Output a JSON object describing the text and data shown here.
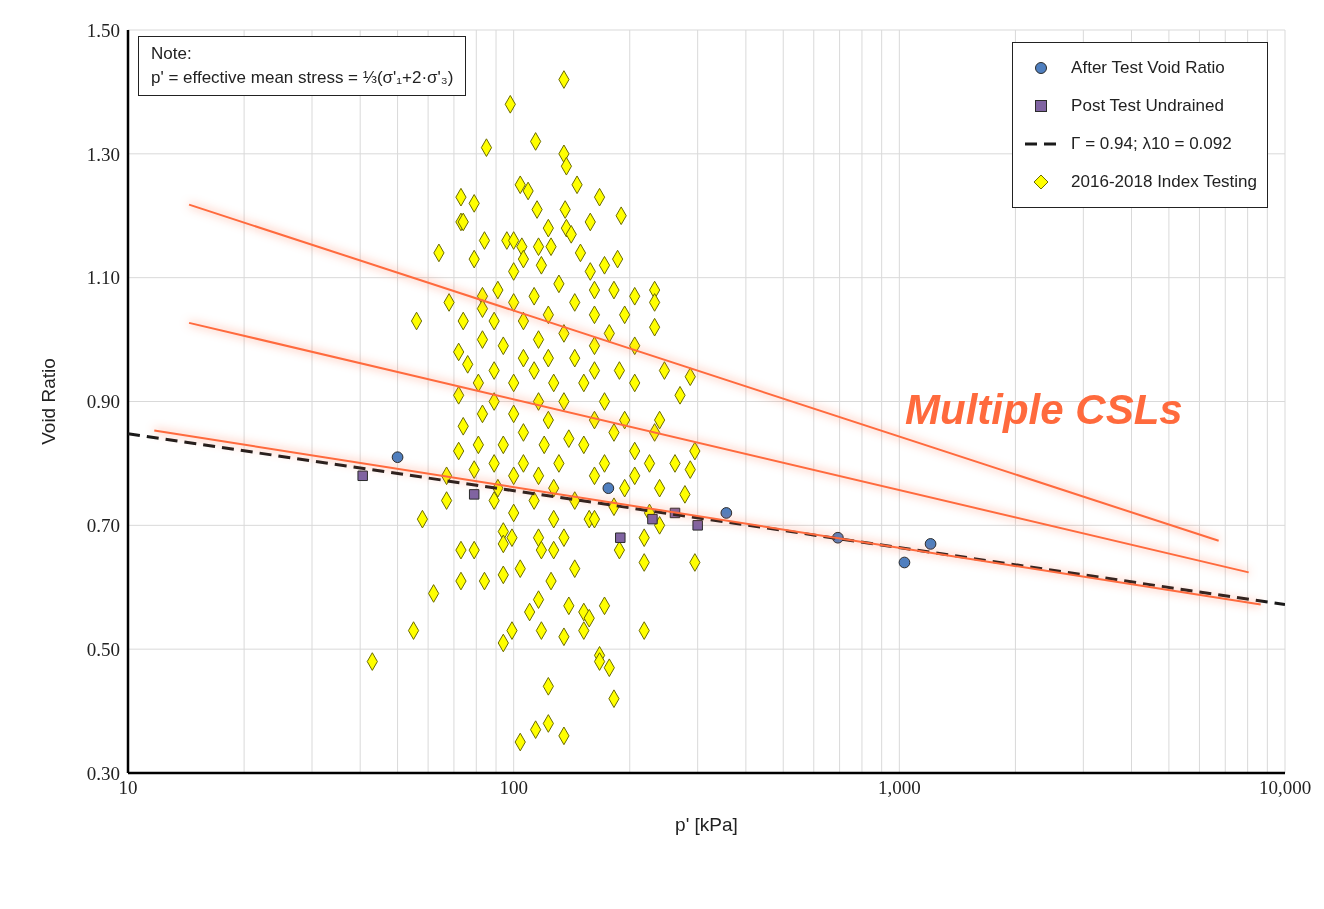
{
  "chart_data": {
    "type": "scatter",
    "xlabel": "p' [kPa]",
    "ylabel": "Void Ratio",
    "log": "x",
    "xlim": [
      10,
      10000
    ],
    "xticks": [
      10,
      {
        "value": 20,
        "label": null
      },
      {
        "value": 30,
        "label": null
      },
      {
        "value": 40,
        "label": null
      },
      {
        "value": 50,
        "label": null
      },
      {
        "value": 60,
        "label": null
      },
      {
        "value": 70,
        "label": null
      },
      {
        "value": 80,
        "label": null
      },
      {
        "value": 90,
        "label": null
      },
      100,
      {
        "value": 200,
        "label": null
      },
      {
        "value": 300,
        "label": null
      },
      {
        "value": 400,
        "label": null
      },
      {
        "value": 500,
        "label": null
      },
      {
        "value": 600,
        "label": null
      },
      {
        "value": 700,
        "label": null
      },
      {
        "value": 800,
        "label": null
      },
      {
        "value": 900,
        "label": null
      },
      {
        "value": 1000,
        "label": "1,000"
      },
      {
        "value": 2000,
        "label": null
      },
      {
        "value": 3000,
        "label": null
      },
      {
        "value": 4000,
        "label": null
      },
      {
        "value": 5000,
        "label": null
      },
      {
        "value": 6000,
        "label": null
      },
      {
        "value": 7000,
        "label": null
      },
      {
        "value": 8000,
        "label": null
      },
      {
        "value": 9000,
        "label": null
      },
      {
        "value": 10000,
        "label": "10,000"
      }
    ],
    "ylim": [
      0.3,
      1.5
    ],
    "yticks": [
      {
        "value": 0.3,
        "label": "0.30"
      },
      {
        "value": 0.5,
        "label": "0.50"
      },
      {
        "value": 0.7,
        "label": "0.70"
      },
      {
        "value": 0.9,
        "label": "0.90"
      },
      {
        "value": 1.1,
        "label": "1.10"
      },
      {
        "value": 1.3,
        "label": "1.30"
      },
      {
        "value": 1.5,
        "label": "1.50"
      }
    ],
    "grid": true,
    "legend": "top right",
    "annotations": [
      "Note:\np' = effective mean stress = ⅓(σ'₁+2·σ'₃)",
      "Multiple CSLs"
    ],
    "series": [
      {
        "name": "After Test Void Ratio",
        "type": "scatter",
        "marker": "circle",
        "color": "#4f7fbf",
        "x": [
          50,
          176,
          356,
          693,
          1031,
          1205
        ],
        "values": [
          0.81,
          0.76,
          0.72,
          0.68,
          0.64,
          0.67
        ]
      },
      {
        "name": "Post Test Undrained",
        "type": "scatter",
        "marker": "square",
        "color": "#8064a2",
        "x": [
          40.6,
          79,
          189,
          229,
          262,
          300
        ],
        "values": [
          0.78,
          0.75,
          0.68,
          0.71,
          0.72,
          0.7
        ]
      },
      {
        "name": "Γ = 0.94; λ10 = 0.092",
        "type": "line",
        "marker": "none",
        "line_style": "dashed",
        "color": "#1a1a1a",
        "x": [
          10,
          10000
        ],
        "values": [
          0.848,
          0.572
        ]
      },
      {
        "name": "2016-2018 Index Testing",
        "type": "scatter",
        "marker": "diamond",
        "color": "#ffff00",
        "x": [
          135,
          98,
          114,
          135,
          137,
          146,
          104,
          109,
          167,
          73,
          85,
          79,
          115,
          136,
          190,
          158,
          73,
          64,
          74,
          84,
          79,
          96,
          100,
          105,
          116,
          125,
          149,
          186,
          172,
          158,
          137,
          141,
          123,
          106,
          118,
          100,
          232,
          91,
          83,
          113,
          131,
          162,
          182,
          232,
          83,
          100,
          144,
          206,
          68,
          56,
          74,
          89,
          106,
          123,
          162,
          194,
          232,
          177,
          135,
          116,
          83,
          94,
          72,
          162,
          206,
          144,
          123,
          106,
          76,
          89,
          113,
          162,
          188,
          246,
          287,
          81,
          100,
          127,
          152,
          206,
          72,
          89,
          116,
          135,
          172,
          270,
          83,
          100,
          123,
          162,
          194,
          239,
          74,
          106,
          139,
          182,
          232,
          295,
          81,
          94,
          120,
          152,
          206,
          72,
          89,
          106,
          131,
          172,
          225,
          262,
          79,
          67,
          100,
          116,
          162,
          206,
          287,
          91,
          127,
          194,
          239,
          67,
          89,
          113,
          144,
          182,
          278,
          100,
          157,
          225,
          58,
          127,
          162,
          94,
          99,
          116,
          135,
          188,
          218,
          239,
          295,
          73,
          79,
          94,
          118,
          127,
          218,
          62,
          73,
          84,
          94,
          104,
          125,
          144,
          116,
          110,
          139,
          152,
          157,
          172,
          99,
          118,
          135,
          152,
          218,
          55,
          94,
          167,
          167,
          177,
          43,
          182,
          123,
          123,
          114,
          104,
          135
        ],
        "values": [
          1.42,
          1.38,
          1.32,
          1.3,
          1.28,
          1.25,
          1.25,
          1.24,
          1.23,
          1.23,
          1.31,
          1.22,
          1.21,
          1.21,
          1.2,
          1.19,
          1.19,
          1.14,
          1.19,
          1.16,
          1.13,
          1.16,
          1.16,
          1.15,
          1.15,
          1.15,
          1.14,
          1.13,
          1.12,
          1.11,
          1.18,
          1.17,
          1.18,
          1.13,
          1.12,
          1.11,
          1.08,
          1.08,
          1.07,
          1.07,
          1.09,
          1.08,
          1.08,
          1.06,
          1.05,
          1.06,
          1.06,
          1.07,
          1.06,
          1.03,
          1.03,
          1.03,
          1.03,
          1.04,
          1.04,
          1.04,
          1.02,
          1.01,
          1.01,
          1.0,
          1.0,
          0.99,
          0.98,
          0.99,
          0.99,
          0.97,
          0.97,
          0.97,
          0.96,
          0.95,
          0.95,
          0.95,
          0.95,
          0.95,
          0.94,
          0.93,
          0.93,
          0.93,
          0.93,
          0.93,
          0.91,
          0.9,
          0.9,
          0.9,
          0.9,
          0.91,
          0.88,
          0.88,
          0.87,
          0.87,
          0.87,
          0.87,
          0.86,
          0.85,
          0.84,
          0.85,
          0.85,
          0.82,
          0.83,
          0.83,
          0.83,
          0.83,
          0.82,
          0.82,
          0.8,
          0.8,
          0.8,
          0.8,
          0.8,
          0.8,
          0.79,
          0.78,
          0.78,
          0.78,
          0.78,
          0.78,
          0.79,
          0.76,
          0.76,
          0.76,
          0.76,
          0.74,
          0.74,
          0.74,
          0.74,
          0.73,
          0.75,
          0.72,
          0.71,
          0.72,
          0.71,
          0.71,
          0.71,
          0.69,
          0.68,
          0.68,
          0.68,
          0.66,
          0.68,
          0.7,
          0.64,
          0.66,
          0.66,
          0.67,
          0.66,
          0.66,
          0.64,
          0.59,
          0.61,
          0.61,
          0.62,
          0.63,
          0.61,
          0.63,
          0.58,
          0.56,
          0.57,
          0.56,
          0.55,
          0.57,
          0.53,
          0.53,
          0.52,
          0.53,
          0.53,
          0.53,
          0.51,
          0.49,
          0.48,
          0.47,
          0.48,
          0.42,
          0.44,
          0.38,
          0.37,
          0.35,
          0.36
        ]
      },
      {
        "type": "line",
        "marker": "none",
        "line_style": "solid",
        "color": "#ff6a3d",
        "x": [
          14.4,
          6730
        ],
        "values": [
          1.218,
          0.675
        ]
      },
      {
        "type": "line",
        "marker": "none",
        "line_style": "solid",
        "color": "#ff6a3d",
        "x": [
          14.4,
          8050
        ],
        "values": [
          1.027,
          0.624
        ]
      },
      {
        "type": "line",
        "marker": "none",
        "line_style": "solid",
        "color": "#ff6a3d",
        "x": [
          11.7,
          8650
        ],
        "values": [
          0.853,
          0.572
        ]
      }
    ]
  }
}
